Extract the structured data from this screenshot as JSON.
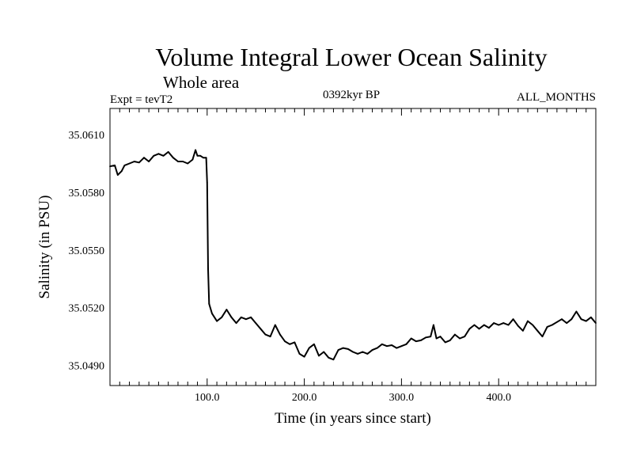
{
  "chart_data": {
    "type": "line",
    "title": "Volume Integral Lower Ocean Salinity",
    "subtitle": "Whole area",
    "header_left": "Expt = tevT2",
    "header_center": "0392kyr BP",
    "header_right": "ALL_MONTHS",
    "xlabel": "Time (in years since start)",
    "ylabel": "Salinity (in PSU)",
    "xlim": [
      0,
      500
    ],
    "ylim": [
      35.04795,
      35.06236
    ],
    "x_ticks": [
      100,
      200,
      300,
      400
    ],
    "x_tick_labels": [
      "100.0",
      "200.0",
      "300.0",
      "400.0"
    ],
    "y_ticks": [
      35.049,
      35.052,
      35.055,
      35.058,
      35.061
    ],
    "y_tick_labels": [
      "35.0490",
      "35.0520",
      "35.0550",
      "35.0580",
      "35.0610"
    ],
    "grid": false,
    "line_color": "#000000",
    "series": [
      {
        "x": [
          0,
          5,
          8,
          12,
          15,
          20,
          25,
          30,
          35,
          40,
          45,
          50,
          55,
          60,
          65,
          70,
          75,
          80,
          85,
          88,
          90,
          93,
          96,
          99,
          100,
          101,
          102,
          105,
          110,
          115,
          120,
          125,
          130,
          135,
          140,
          145,
          150,
          155,
          160,
          165,
          170,
          175,
          180,
          185,
          190,
          195,
          200,
          205,
          210,
          215,
          220,
          225,
          230,
          235,
          240,
          245,
          250,
          255,
          260,
          265,
          270,
          275,
          280,
          285,
          290,
          295,
          300,
          305,
          310,
          315,
          320,
          325,
          330,
          333,
          336,
          340,
          345,
          350,
          355,
          360,
          365,
          370,
          375,
          380,
          385,
          390,
          395,
          400,
          405,
          410,
          415,
          420,
          425,
          430,
          435,
          440,
          445,
          450,
          455,
          460,
          465,
          470,
          475,
          480,
          485,
          490,
          495,
          500
        ],
        "y": [
          35.05935,
          35.0594,
          35.0589,
          35.0591,
          35.0594,
          35.0595,
          35.0596,
          35.05955,
          35.0598,
          35.0596,
          35.0599,
          35.06,
          35.0599,
          35.0601,
          35.0598,
          35.0596,
          35.0596,
          35.0595,
          35.0597,
          35.0602,
          35.0599,
          35.0599,
          35.0598,
          35.0598,
          35.0585,
          35.054,
          35.0522,
          35.0517,
          35.0513,
          35.0515,
          35.0519,
          35.0515,
          35.0512,
          35.0515,
          35.0514,
          35.0515,
          35.0512,
          35.0509,
          35.0506,
          35.0505,
          35.0511,
          35.0506,
          35.05025,
          35.0501,
          35.0502,
          35.0496,
          35.04945,
          35.0499,
          35.0501,
          35.0495,
          35.0497,
          35.0494,
          35.0493,
          35.0498,
          35.0499,
          35.04985,
          35.0497,
          35.0496,
          35.0497,
          35.0496,
          35.0498,
          35.0499,
          35.0501,
          35.05,
          35.05005,
          35.0499,
          35.05,
          35.0501,
          35.0504,
          35.05025,
          35.0503,
          35.05045,
          35.0505,
          35.0511,
          35.0504,
          35.0505,
          35.0502,
          35.0503,
          35.0506,
          35.0504,
          35.0505,
          35.0509,
          35.0511,
          35.0509,
          35.0511,
          35.05095,
          35.0512,
          35.0511,
          35.0512,
          35.0511,
          35.0514,
          35.05105,
          35.0508,
          35.0513,
          35.0511,
          35.0508,
          35.0505,
          35.051,
          35.0511,
          35.05125,
          35.0514,
          35.0512,
          35.0514,
          35.0518,
          35.0514,
          35.0513,
          35.0515,
          35.0512
        ]
      }
    ]
  }
}
